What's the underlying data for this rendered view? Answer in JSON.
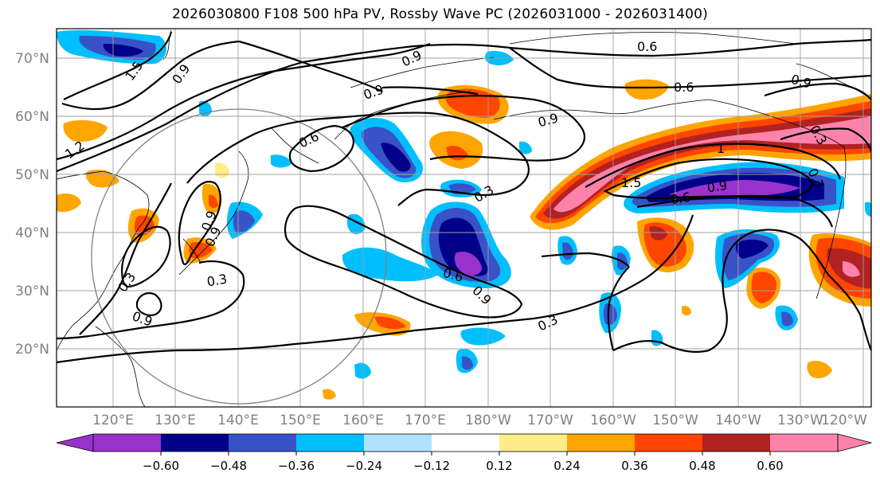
{
  "title": "2026030800 F108 500 hPa PV, Rossby Wave PC (2026031000 - 2026031400)",
  "lat_labels": [
    "70°N",
    "60°N",
    "50°N",
    "40°N",
    "30°N",
    "20°N"
  ],
  "lon_labels": [
    "120°E",
    "130°E",
    "140°E",
    "150°E",
    "160°E",
    "170°E",
    "180°W",
    "170°W",
    "160°W",
    "150°W",
    "140°W",
    "130°W",
    "120°W"
  ],
  "contour_labels": [
    "1.5",
    "0.9",
    "0.9",
    "0.9",
    "1.2",
    "0.6",
    "0.9",
    "0.6",
    "0.6",
    "0.9",
    "0.3",
    "1",
    "1.5",
    "0.9",
    "0.6",
    "0.9",
    "0.3",
    "0.3",
    "0.9",
    "0.3",
    "0.9",
    "0.6",
    "0.9",
    "0.3",
    "0.3"
  ],
  "colorbar": {
    "tick_labels": [
      "−0.60",
      "−0.48",
      "−0.36",
      "−0.24",
      "−0.12",
      "0.12",
      "0.24",
      "0.36",
      "0.48",
      "0.60"
    ],
    "colors": [
      "#9932CC",
      "#00008B",
      "#3A52C8",
      "#00BFFF",
      "#B0E2FF",
      "#FFFFFF",
      "#FFEC8B",
      "#FFA500",
      "#FF4500",
      "#B22222",
      "#FF82AB"
    ]
  }
}
